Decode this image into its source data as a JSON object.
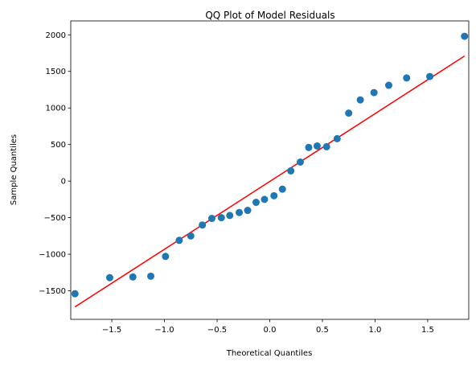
{
  "chart_data": {
    "type": "scatter",
    "title": "QQ Plot of Model Residuals",
    "xlabel": "Theoretical Quantiles",
    "ylabel": "Sample Quantiles",
    "xlim": [
      -1.89,
      1.89
    ],
    "ylim": [
      -1890,
      2190
    ],
    "xticks": [
      -1.5,
      -1.0,
      -0.5,
      0.0,
      0.5,
      1.0,
      1.5
    ],
    "xtick_labels": [
      "−1.5",
      "−1.0",
      "−0.5",
      "0.0",
      "0.5",
      "1.0",
      "1.5"
    ],
    "yticks": [
      -1500,
      -1000,
      -500,
      0,
      500,
      1000,
      1500,
      2000
    ],
    "ytick_labels": [
      "−1500",
      "−1000",
      "−500",
      "0",
      "500",
      "1000",
      "1500",
      "2000"
    ],
    "grid": false,
    "point_color": "#1f77b4",
    "line_color": "#ff0000",
    "points": {
      "x": [
        -1.85,
        -1.52,
        -1.3,
        -1.13,
        -0.99,
        -0.86,
        -0.75,
        -0.64,
        -0.55,
        -0.46,
        -0.38,
        -0.29,
        -0.21,
        -0.13,
        -0.05,
        0.04,
        0.12,
        0.2,
        0.29,
        0.37,
        0.45,
        0.54,
        0.64,
        0.75,
        0.86,
        0.99,
        1.13,
        1.3,
        1.52,
        1.85
      ],
      "y": [
        -1540,
        -1320,
        -1310,
        -1300,
        -1030,
        -810,
        -750,
        -600,
        -510,
        -500,
        -470,
        -430,
        -400,
        -290,
        -250,
        -200,
        -110,
        140,
        260,
        460,
        480,
        470,
        580,
        930,
        1110,
        1210,
        1310,
        1410,
        1430,
        1980
      ]
    },
    "reference_line": {
      "x": [
        -1.85,
        1.85
      ],
      "y": [
        -1720,
        1710
      ]
    }
  }
}
